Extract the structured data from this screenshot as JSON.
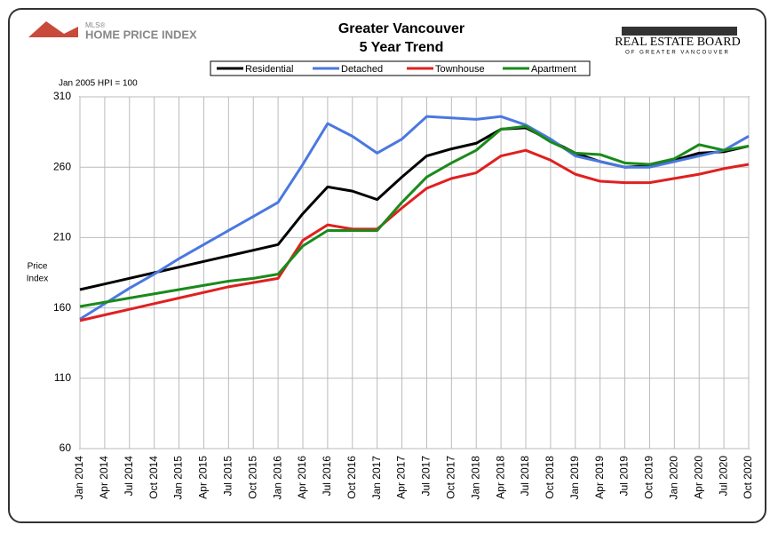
{
  "chart_data": {
    "type": "line",
    "title": "Greater Vancouver",
    "subtitle": "5 Year Trend",
    "left_logo": [
      "MLS®",
      "Home Price Index"
    ],
    "right_logo": [
      "REAL ESTATE BOARD",
      "OF GREATER VANCOUVER"
    ],
    "annotation": "Jan 2005 HPI = 100",
    "y_label": [
      "Price",
      "Index"
    ],
    "categories": [
      "Jan 2014",
      "Apr 2014",
      "Jul 2014",
      "Oct 2014",
      "Jan 2015",
      "Apr 2015",
      "Jul 2015",
      "Oct 2015",
      "Jan 2016",
      "Apr 2016",
      "Jul 2016",
      "Oct 2016",
      "Jan 2017",
      "Apr 2017",
      "Jul 2017",
      "Oct 2017",
      "Jan 2018",
      "Apr 2018",
      "Jul 2018",
      "Oct 2018",
      "Jan 2019",
      "Apr 2019",
      "Jul 2019",
      "Oct 2019",
      "Jan 2020",
      "Apr 2020",
      "Jul 2020",
      "Oct 2020"
    ],
    "series": [
      {
        "name": "Residential",
        "color": "#000000",
        "values": [
          173,
          177,
          181,
          185,
          189,
          193,
          197,
          201,
          205,
          227,
          246,
          243,
          237,
          253,
          268,
          273,
          277,
          287,
          288,
          279,
          270,
          264,
          260,
          261,
          265,
          270,
          271,
          275
        ]
      },
      {
        "name": "Detached",
        "color": "#4a78e0",
        "values": [
          152,
          163,
          174,
          184,
          195,
          205,
          215,
          225,
          235,
          262,
          291,
          282,
          270,
          280,
          296,
          295,
          294,
          296,
          290,
          280,
          268,
          264,
          260,
          260,
          264,
          268,
          272,
          282
        ]
      },
      {
        "name": "Townhouse",
        "color": "#e02020",
        "values": [
          151,
          155,
          159,
          163,
          167,
          171,
          175,
          178,
          181,
          208,
          219,
          216,
          216,
          231,
          245,
          252,
          256,
          268,
          272,
          265,
          255,
          250,
          249,
          249,
          252,
          255,
          259,
          262
        ]
      },
      {
        "name": "Apartment",
        "color": "#1a8a1a",
        "values": [
          161,
          164,
          167,
          170,
          173,
          176,
          179,
          181,
          184,
          204,
          215,
          215,
          215,
          235,
          253,
          263,
          272,
          287,
          289,
          278,
          270,
          269,
          263,
          262,
          266,
          276,
          272,
          275
        ]
      }
    ],
    "ylim": [
      60,
      310
    ],
    "yticks": [
      60,
      110,
      160,
      210,
      260,
      310
    ],
    "grid": true
  }
}
